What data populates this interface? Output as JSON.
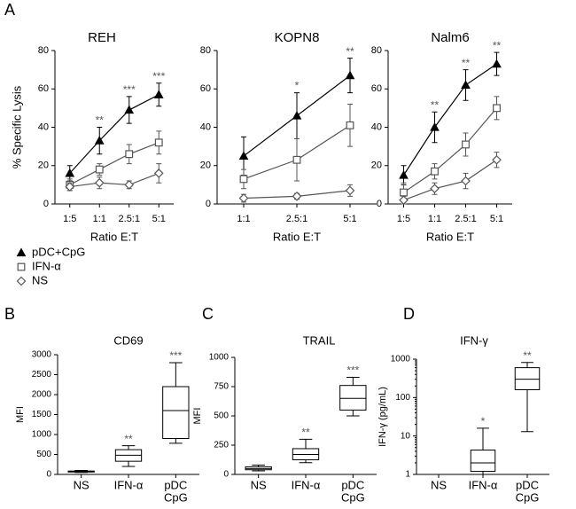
{
  "chart_data": [
    {
      "type": "line",
      "panel": "A",
      "title": "REH",
      "xlabel": "Ratio E:T",
      "ylabel": "% Specific Lysis",
      "categories": [
        "1:5",
        "1:1",
        "2.5:1",
        "5:1"
      ],
      "ylim": [
        0,
        80
      ],
      "yticks": [
        0,
        20,
        40,
        60,
        80
      ],
      "series": [
        {
          "name": "pDC+CpG",
          "color": "#000000",
          "marker": "triangle",
          "values": [
            16,
            33,
            49,
            57
          ],
          "errors": [
            4,
            7,
            7,
            6
          ],
          "significance": [
            null,
            "**",
            "***",
            "***"
          ]
        },
        {
          "name": "IFN-α",
          "color": "#555555",
          "marker": "square",
          "values": [
            10,
            18,
            26,
            32
          ],
          "errors": [
            3,
            3,
            5,
            6
          ]
        },
        {
          "name": "NS",
          "color": "#555555",
          "marker": "diamond",
          "values": [
            9,
            11,
            10,
            16
          ],
          "errors": [
            2,
            3,
            2,
            5
          ]
        }
      ]
    },
    {
      "type": "line",
      "title": "KOPN8",
      "xlabel": "Ratio E:T",
      "categories": [
        "1:1",
        "2.5:1",
        "5:1"
      ],
      "ylim": [
        0,
        80
      ],
      "yticks": [
        0,
        20,
        40,
        60,
        80
      ],
      "series": [
        {
          "color": "#000000",
          "marker": "triangle",
          "values": [
            25,
            46,
            67
          ],
          "errors": [
            10,
            12,
            9
          ],
          "significance": [
            null,
            "*",
            "**"
          ]
        },
        {
          "color": "#555555",
          "marker": "square",
          "values": [
            13,
            23,
            41
          ],
          "errors": [
            5,
            11,
            11
          ]
        },
        {
          "color": "#555555",
          "marker": "diamond",
          "values": [
            3,
            4,
            7
          ],
          "errors": [
            2,
            1.5,
            3
          ]
        }
      ]
    },
    {
      "type": "line",
      "title": "Nalm6",
      "xlabel": "Ratio E:T",
      "categories": [
        "1:5",
        "1:1",
        "2.5:1",
        "5:1"
      ],
      "ylim": [
        0,
        80
      ],
      "yticks": [
        0,
        20,
        40,
        60,
        80
      ],
      "series": [
        {
          "color": "#000000",
          "marker": "triangle",
          "values": [
            15,
            40,
            62,
            73
          ],
          "errors": [
            5,
            8,
            8,
            6
          ],
          "significance": [
            null,
            "**",
            "**",
            "**"
          ]
        },
        {
          "color": "#555555",
          "marker": "square",
          "values": [
            6,
            17,
            31,
            50
          ],
          "errors": [
            5,
            4,
            6,
            6
          ]
        },
        {
          "color": "#555555",
          "marker": "diamond",
          "values": [
            2,
            8,
            12,
            23
          ],
          "errors": [
            2,
            3,
            4,
            4
          ]
        }
      ]
    },
    {
      "type": "box",
      "panel": "B",
      "title": "CD69",
      "ylabel": "MFI",
      "categories": [
        [
          "NS"
        ],
        [
          "IFN-α"
        ],
        [
          "pDC",
          "CpG"
        ]
      ],
      "ylim": [
        0,
        3000
      ],
      "yticks": [
        0,
        500,
        1000,
        1500,
        2000,
        2500,
        3000
      ],
      "min": [
        50,
        200,
        780
      ],
      "q1": [
        60,
        330,
        900
      ],
      "median": [
        70,
        480,
        1600
      ],
      "q3": [
        85,
        620,
        2200
      ],
      "max": [
        100,
        720,
        2800
      ],
      "significance": [
        null,
        "**",
        "***"
      ]
    },
    {
      "type": "box",
      "panel": "C",
      "title": "TRAIL",
      "ylabel": "MFI",
      "categories": [
        [
          "NS"
        ],
        [
          "IFN-α"
        ],
        [
          "pDC",
          "CpG"
        ]
      ],
      "ylim": [
        0,
        1000
      ],
      "yticks": [
        0,
        250,
        500,
        750,
        1000
      ],
      "min": [
        30,
        100,
        500
      ],
      "q1": [
        40,
        125,
        550
      ],
      "median": [
        50,
        170,
        650
      ],
      "q3": [
        65,
        220,
        760
      ],
      "max": [
        80,
        300,
        830
      ],
      "significance": [
        null,
        "**",
        "***"
      ]
    },
    {
      "type": "box",
      "panel": "D",
      "title": "IFN-γ",
      "ylabel": "IFN-γ (pg/mL)",
      "log_y": true,
      "categories": [
        [
          "NS"
        ],
        [
          "IFN-α"
        ],
        [
          "pDC",
          "CpG"
        ]
      ],
      "ylim": [
        1,
        1000
      ],
      "yticks": [
        1,
        10,
        100,
        1000
      ],
      "min": [
        null,
        1,
        13
      ],
      "q1": [
        null,
        1.2,
        160
      ],
      "median": [
        null,
        2,
        300
      ],
      "q3": [
        null,
        4.3,
        600
      ],
      "max": [
        null,
        16,
        820
      ],
      "significance": [
        null,
        "*",
        "**"
      ]
    }
  ]
}
